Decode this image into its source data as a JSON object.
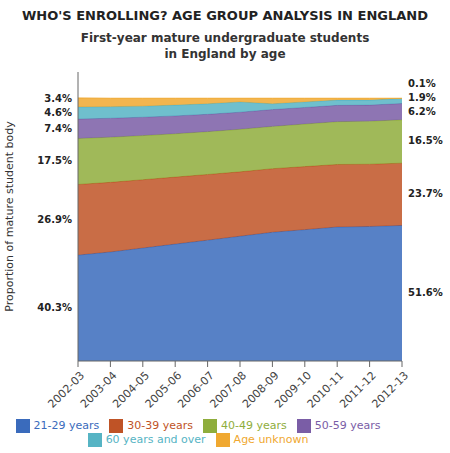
{
  "chart_data": {
    "type": "area",
    "title": "WHO'S ENROLLING? AGE GROUP ANALYSIS IN ENGLAND",
    "subtitle": "First-year mature undergraduate students\nin England by age",
    "ylabel": "Proportion of mature student body",
    "categories": [
      "2002-03",
      "2003-04",
      "2004-05",
      "2005-06",
      "2006-07",
      "2007-08",
      "2008-09",
      "2009-10",
      "2010-11",
      "2011-12",
      "2012-13"
    ],
    "series": [
      {
        "name": "21-29 years",
        "color": "#3a6bbc",
        "values": [
          40.3,
          41.5,
          43.0,
          44.5,
          46.0,
          47.5,
          49.0,
          50.0,
          51.0,
          51.2,
          51.6
        ]
      },
      {
        "name": "30-39 years",
        "color": "#bf5326",
        "values": [
          26.9,
          26.5,
          26.0,
          25.5,
          25.0,
          24.5,
          24.2,
          24.0,
          23.8,
          23.7,
          23.7
        ]
      },
      {
        "name": "40-49 years",
        "color": "#8fad3c",
        "values": [
          17.5,
          17.2,
          16.8,
          16.5,
          16.3,
          16.2,
          16.1,
          16.2,
          16.3,
          16.4,
          16.5
        ]
      },
      {
        "name": "50-59 years",
        "color": "#7a5da6",
        "values": [
          7.4,
          7.2,
          7.0,
          6.8,
          6.6,
          6.5,
          6.4,
          6.3,
          6.2,
          6.1,
          6.2
        ]
      },
      {
        "name": "60 years and over",
        "color": "#56b4c4",
        "values": [
          4.6,
          4.4,
          4.2,
          4.1,
          4.0,
          3.9,
          2.2,
          2.1,
          2.0,
          1.9,
          1.9
        ]
      },
      {
        "name": "Age unknown",
        "color": "#f0a830",
        "values": [
          3.4,
          3.2,
          3.0,
          2.6,
          2.1,
          1.4,
          2.1,
          1.4,
          0.7,
          0.7,
          0.1
        ]
      }
    ],
    "ylim": [
      0,
      110
    ],
    "yticks": [],
    "stacked": true,
    "grid": false,
    "legend": "bottom",
    "tick_labels": "x",
    "annotations": [
      {
        "text": "40.3%",
        "x": "2002-03",
        "series": "21-29 years"
      },
      {
        "text": "26.9%",
        "x": "2002-03",
        "series": "30-39 years"
      },
      {
        "text": "17.5%",
        "x": "2002-03",
        "series": "40-49 years"
      },
      {
        "text": "7.4%",
        "x": "2002-03",
        "series": "50-59 years"
      },
      {
        "text": "4.6%",
        "x": "2002-03",
        "series": "60 years and over"
      },
      {
        "text": "3.4%",
        "x": "2002-03",
        "series": "Age unknown"
      },
      {
        "text": "51.6%",
        "x": "2012-13",
        "series": "21-29 years"
      },
      {
        "text": "23.7%",
        "x": "2012-13",
        "series": "30-39 years"
      },
      {
        "text": "16.5%",
        "x": "2012-13",
        "series": "40-49 years"
      },
      {
        "text": "6.2%",
        "x": "2012-13",
        "series": "50-59 years"
      },
      {
        "text": "1.9%",
        "x": "2012-13",
        "series": "60 years and over"
      },
      {
        "text": "0.1%",
        "x": "2012-13",
        "series": "Age unknown"
      }
    ]
  }
}
